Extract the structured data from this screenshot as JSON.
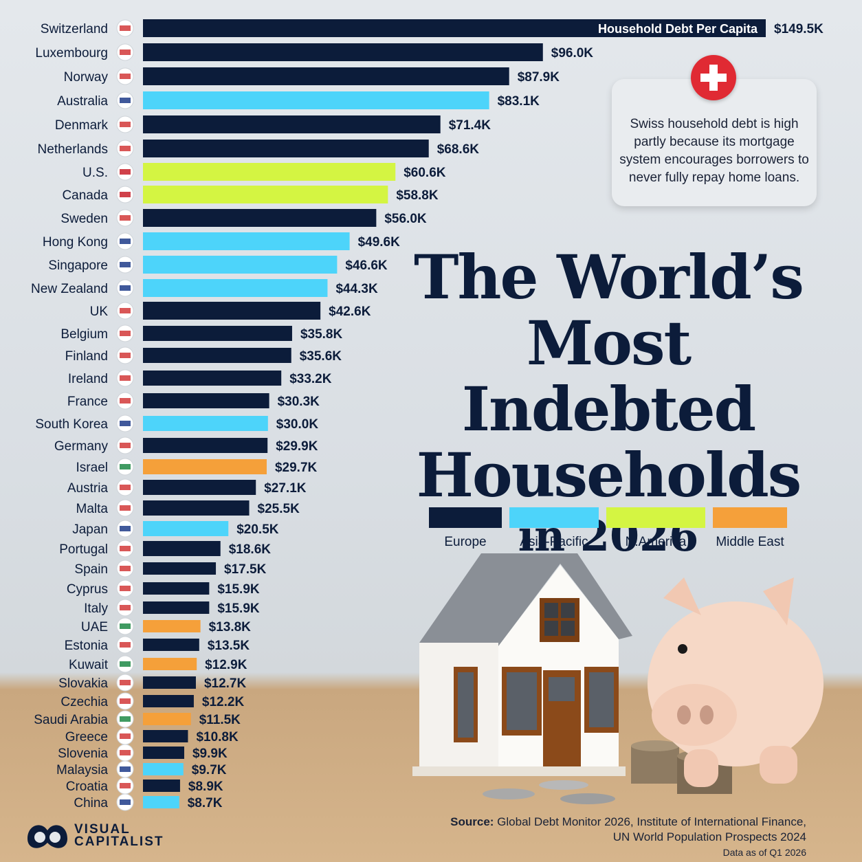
{
  "title": {
    "line1": "The World’s",
    "line2": "Most Indebted",
    "line3": "Households",
    "line4": "in 2026"
  },
  "callout": {
    "icon": "swiss-flag-icon",
    "text": "Swiss household debt is high partly because its mortgage system encourages borrowers to never fully repay home loans."
  },
  "legend": [
    {
      "label": "Europe",
      "color": "#0c1c3a"
    },
    {
      "label": "Asia-Pacific",
      "color": "#4dd4fa"
    },
    {
      "label": "N.America",
      "color": "#d4f542"
    },
    {
      "label": "Middle East",
      "color": "#f5a03a"
    }
  ],
  "source": {
    "label": "Source:",
    "text": "Global Debt Monitor 2026, Institute of International Finance, UN World Population Prospects 2024",
    "note": "Data as of Q1 2026"
  },
  "logo": {
    "line1": "VISUAL",
    "line2": "CAPITALIST"
  },
  "chart_data": {
    "type": "bar",
    "orientation": "horizontal",
    "series_label": "Household Debt Per Capita",
    "unit": "USD thousands",
    "colors": {
      "Europe": "#0c1c3a",
      "Asia-Pacific": "#4dd4fa",
      "N.America": "#d4f542",
      "Middle East": "#f5a03a"
    },
    "bars": [
      {
        "country": "Switzerland",
        "value": 149.5,
        "label": "$149.5K",
        "region": "Europe",
        "flag": "switzerland-flag-icon"
      },
      {
        "country": "Luxembourg",
        "value": 96.0,
        "label": "$96.0K",
        "region": "Europe",
        "flag": "luxembourg-flag-icon"
      },
      {
        "country": "Norway",
        "value": 87.9,
        "label": "$87.9K",
        "region": "Europe",
        "flag": "norway-flag-icon"
      },
      {
        "country": "Australia",
        "value": 83.1,
        "label": "$83.1K",
        "region": "Asia-Pacific",
        "flag": "australia-flag-icon"
      },
      {
        "country": "Denmark",
        "value": 71.4,
        "label": "$71.4K",
        "region": "Europe",
        "flag": "denmark-flag-icon"
      },
      {
        "country": "Netherlands",
        "value": 68.6,
        "label": "$68.6K",
        "region": "Europe",
        "flag": "netherlands-flag-icon"
      },
      {
        "country": "U.S.",
        "value": 60.6,
        "label": "$60.6K",
        "region": "N.America",
        "flag": "us-flag-icon"
      },
      {
        "country": "Canada",
        "value": 58.8,
        "label": "$58.8K",
        "region": "N.America",
        "flag": "canada-flag-icon"
      },
      {
        "country": "Sweden",
        "value": 56.0,
        "label": "$56.0K",
        "region": "Europe",
        "flag": "sweden-flag-icon"
      },
      {
        "country": "Hong Kong",
        "value": 49.6,
        "label": "$49.6K",
        "region": "Asia-Pacific",
        "flag": "hong-kong-flag-icon"
      },
      {
        "country": "Singapore",
        "value": 46.6,
        "label": "$46.6K",
        "region": "Asia-Pacific",
        "flag": "singapore-flag-icon"
      },
      {
        "country": "New Zealand",
        "value": 44.3,
        "label": "$44.3K",
        "region": "Asia-Pacific",
        "flag": "new-zealand-flag-icon"
      },
      {
        "country": "UK",
        "value": 42.6,
        "label": "$42.6K",
        "region": "Europe",
        "flag": "uk-flag-icon"
      },
      {
        "country": "Belgium",
        "value": 35.8,
        "label": "$35.8K",
        "region": "Europe",
        "flag": "belgium-flag-icon"
      },
      {
        "country": "Finland",
        "value": 35.6,
        "label": "$35.6K",
        "region": "Europe",
        "flag": "finland-flag-icon"
      },
      {
        "country": "Ireland",
        "value": 33.2,
        "label": "$33.2K",
        "region": "Europe",
        "flag": "ireland-flag-icon"
      },
      {
        "country": "France",
        "value": 30.3,
        "label": "$30.3K",
        "region": "Europe",
        "flag": "france-flag-icon"
      },
      {
        "country": "South Korea",
        "value": 30.0,
        "label": "$30.0K",
        "region": "Asia-Pacific",
        "flag": "south-korea-flag-icon"
      },
      {
        "country": "Germany",
        "value": 29.9,
        "label": "$29.9K",
        "region": "Europe",
        "flag": "germany-flag-icon"
      },
      {
        "country": "Israel",
        "value": 29.7,
        "label": "$29.7K",
        "region": "Middle East",
        "flag": "israel-flag-icon"
      },
      {
        "country": "Austria",
        "value": 27.1,
        "label": "$27.1K",
        "region": "Europe",
        "flag": "austria-flag-icon"
      },
      {
        "country": "Malta",
        "value": 25.5,
        "label": "$25.5K",
        "region": "Europe",
        "flag": "malta-flag-icon"
      },
      {
        "country": "Japan",
        "value": 20.5,
        "label": "$20.5K",
        "region": "Asia-Pacific",
        "flag": "japan-flag-icon"
      },
      {
        "country": "Portugal",
        "value": 18.6,
        "label": "$18.6K",
        "region": "Europe",
        "flag": "portugal-flag-icon"
      },
      {
        "country": "Spain",
        "value": 17.5,
        "label": "$17.5K",
        "region": "Europe",
        "flag": "spain-flag-icon"
      },
      {
        "country": "Cyprus",
        "value": 15.9,
        "label": "$15.9K",
        "region": "Europe",
        "flag": "cyprus-flag-icon"
      },
      {
        "country": "Italy",
        "value": 15.9,
        "label": "$15.9K",
        "region": "Europe",
        "flag": "italy-flag-icon"
      },
      {
        "country": "UAE",
        "value": 13.8,
        "label": "$13.8K",
        "region": "Middle East",
        "flag": "uae-flag-icon"
      },
      {
        "country": "Estonia",
        "value": 13.5,
        "label": "$13.5K",
        "region": "Europe",
        "flag": "estonia-flag-icon"
      },
      {
        "country": "Kuwait",
        "value": 12.9,
        "label": "$12.9K",
        "region": "Middle East",
        "flag": "kuwait-flag-icon"
      },
      {
        "country": "Slovakia",
        "value": 12.7,
        "label": "$12.7K",
        "region": "Europe",
        "flag": "slovakia-flag-icon"
      },
      {
        "country": "Czechia",
        "value": 12.2,
        "label": "$12.2K",
        "region": "Europe",
        "flag": "czechia-flag-icon"
      },
      {
        "country": "Saudi Arabia",
        "value": 11.5,
        "label": "$11.5K",
        "region": "Middle East",
        "flag": "saudi-arabia-flag-icon"
      },
      {
        "country": "Greece",
        "value": 10.8,
        "label": "$10.8K",
        "region": "Europe",
        "flag": "greece-flag-icon"
      },
      {
        "country": "Slovenia",
        "value": 9.9,
        "label": "$9.9K",
        "region": "Europe",
        "flag": "slovenia-flag-icon"
      },
      {
        "country": "Malaysia",
        "value": 9.7,
        "label": "$9.7K",
        "region": "Asia-Pacific",
        "flag": "malaysia-flag-icon"
      },
      {
        "country": "Croatia",
        "value": 8.9,
        "label": "$8.9K",
        "region": "Europe",
        "flag": "croatia-flag-icon"
      },
      {
        "country": "China",
        "value": 8.7,
        "label": "$8.7K",
        "region": "Asia-Pacific",
        "flag": "china-flag-icon"
      }
    ]
  }
}
